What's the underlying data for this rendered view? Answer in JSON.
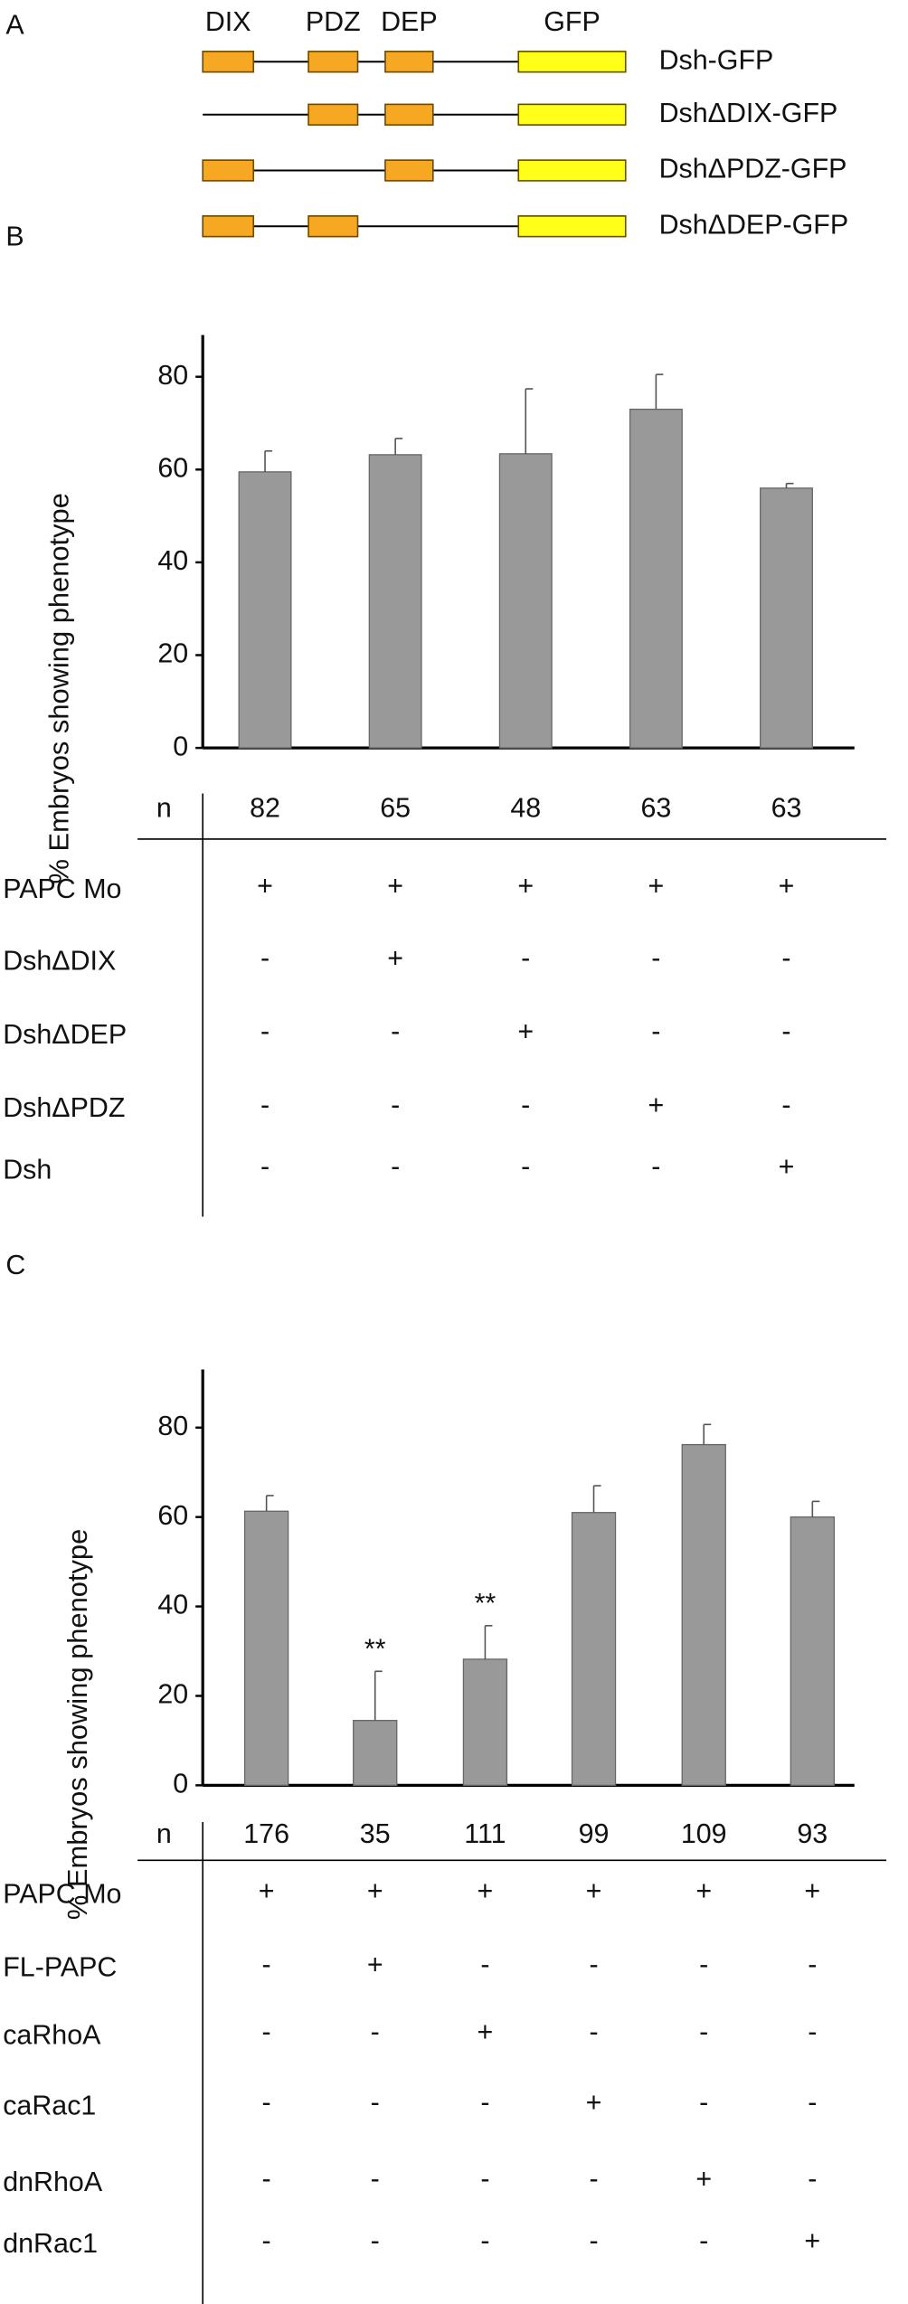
{
  "panels": [
    "A",
    "B",
    "C"
  ],
  "diagram": {
    "domains": [
      "DIX",
      "PDZ",
      "DEP",
      "GFP"
    ],
    "constructs": [
      {
        "label": "Dsh-GFP",
        "domains": [
          "DIX",
          "PDZ",
          "DEP",
          "GFP"
        ]
      },
      {
        "label": "DshΔDIX-GFP",
        "domains": [
          "PDZ",
          "DEP",
          "GFP"
        ]
      },
      {
        "label": "DshΔPDZ-GFP",
        "domains": [
          "DIX",
          "DEP",
          "GFP"
        ]
      },
      {
        "label": "DshΔDEP-GFP",
        "domains": [
          "DIX",
          "PDZ",
          "GFP"
        ]
      }
    ]
  },
  "chart_data": [
    {
      "type": "bar",
      "ylabel": "% Embryos showing phenotype",
      "values": [
        59.5,
        63.2,
        63.4,
        73,
        56
      ],
      "errors": [
        4.5,
        3.5,
        14,
        7.5,
        1
      ],
      "color": "#999999",
      "ylim": [
        0,
        89
      ],
      "yticks": [
        0,
        20,
        40,
        60,
        80
      ],
      "n_label": "n",
      "n": [
        82,
        65,
        48,
        63,
        63
      ],
      "table": [
        {
          "label": "PAPC Mo",
          "cells": [
            "+",
            "+",
            "+",
            "+",
            "+"
          ]
        },
        {
          "label": "DshΔDIX",
          "cells": [
            "-",
            "+",
            "-",
            "-",
            "-"
          ]
        },
        {
          "label": "DshΔDEP",
          "cells": [
            "-",
            "-",
            "+",
            "-",
            "-"
          ]
        },
        {
          "label": "DshΔPDZ",
          "cells": [
            "-",
            "-",
            "-",
            "+",
            "-"
          ]
        },
        {
          "label": "Dsh",
          "cells": [
            "-",
            "-",
            "-",
            "-",
            "+"
          ]
        }
      ]
    },
    {
      "type": "bar",
      "ylabel": "% Embryos showing phenotype",
      "values": [
        61.3,
        14.5,
        28.2,
        61,
        76.2,
        60
      ],
      "errors": [
        3.5,
        11,
        7.5,
        6,
        4.5,
        3.5
      ],
      "annotations": [
        null,
        "**",
        "**",
        null,
        null,
        null
      ],
      "color": "#999999",
      "ylim": [
        0,
        93
      ],
      "yticks": [
        0,
        20,
        40,
        60,
        80
      ],
      "n_label": "n",
      "n": [
        176,
        35,
        111,
        99,
        109,
        93
      ],
      "table": [
        {
          "label": "PAPC Mo",
          "cells": [
            "+",
            "+",
            "+",
            "+",
            "+",
            "+"
          ]
        },
        {
          "label": "FL-PAPC",
          "cells": [
            "-",
            "+",
            "-",
            "-",
            "-",
            "-"
          ]
        },
        {
          "label": "caRhoA",
          "cells": [
            "-",
            "-",
            "+",
            "-",
            "-",
            "-"
          ]
        },
        {
          "label": "caRac1",
          "cells": [
            "-",
            "-",
            "-",
            "+",
            "-",
            "-"
          ]
        },
        {
          "label": "dnRhoA",
          "cells": [
            "-",
            "-",
            "-",
            "-",
            "+",
            "-"
          ]
        },
        {
          "label": "dnRac1",
          "cells": [
            "-",
            "-",
            "-",
            "-",
            "-",
            "+"
          ]
        }
      ]
    }
  ]
}
